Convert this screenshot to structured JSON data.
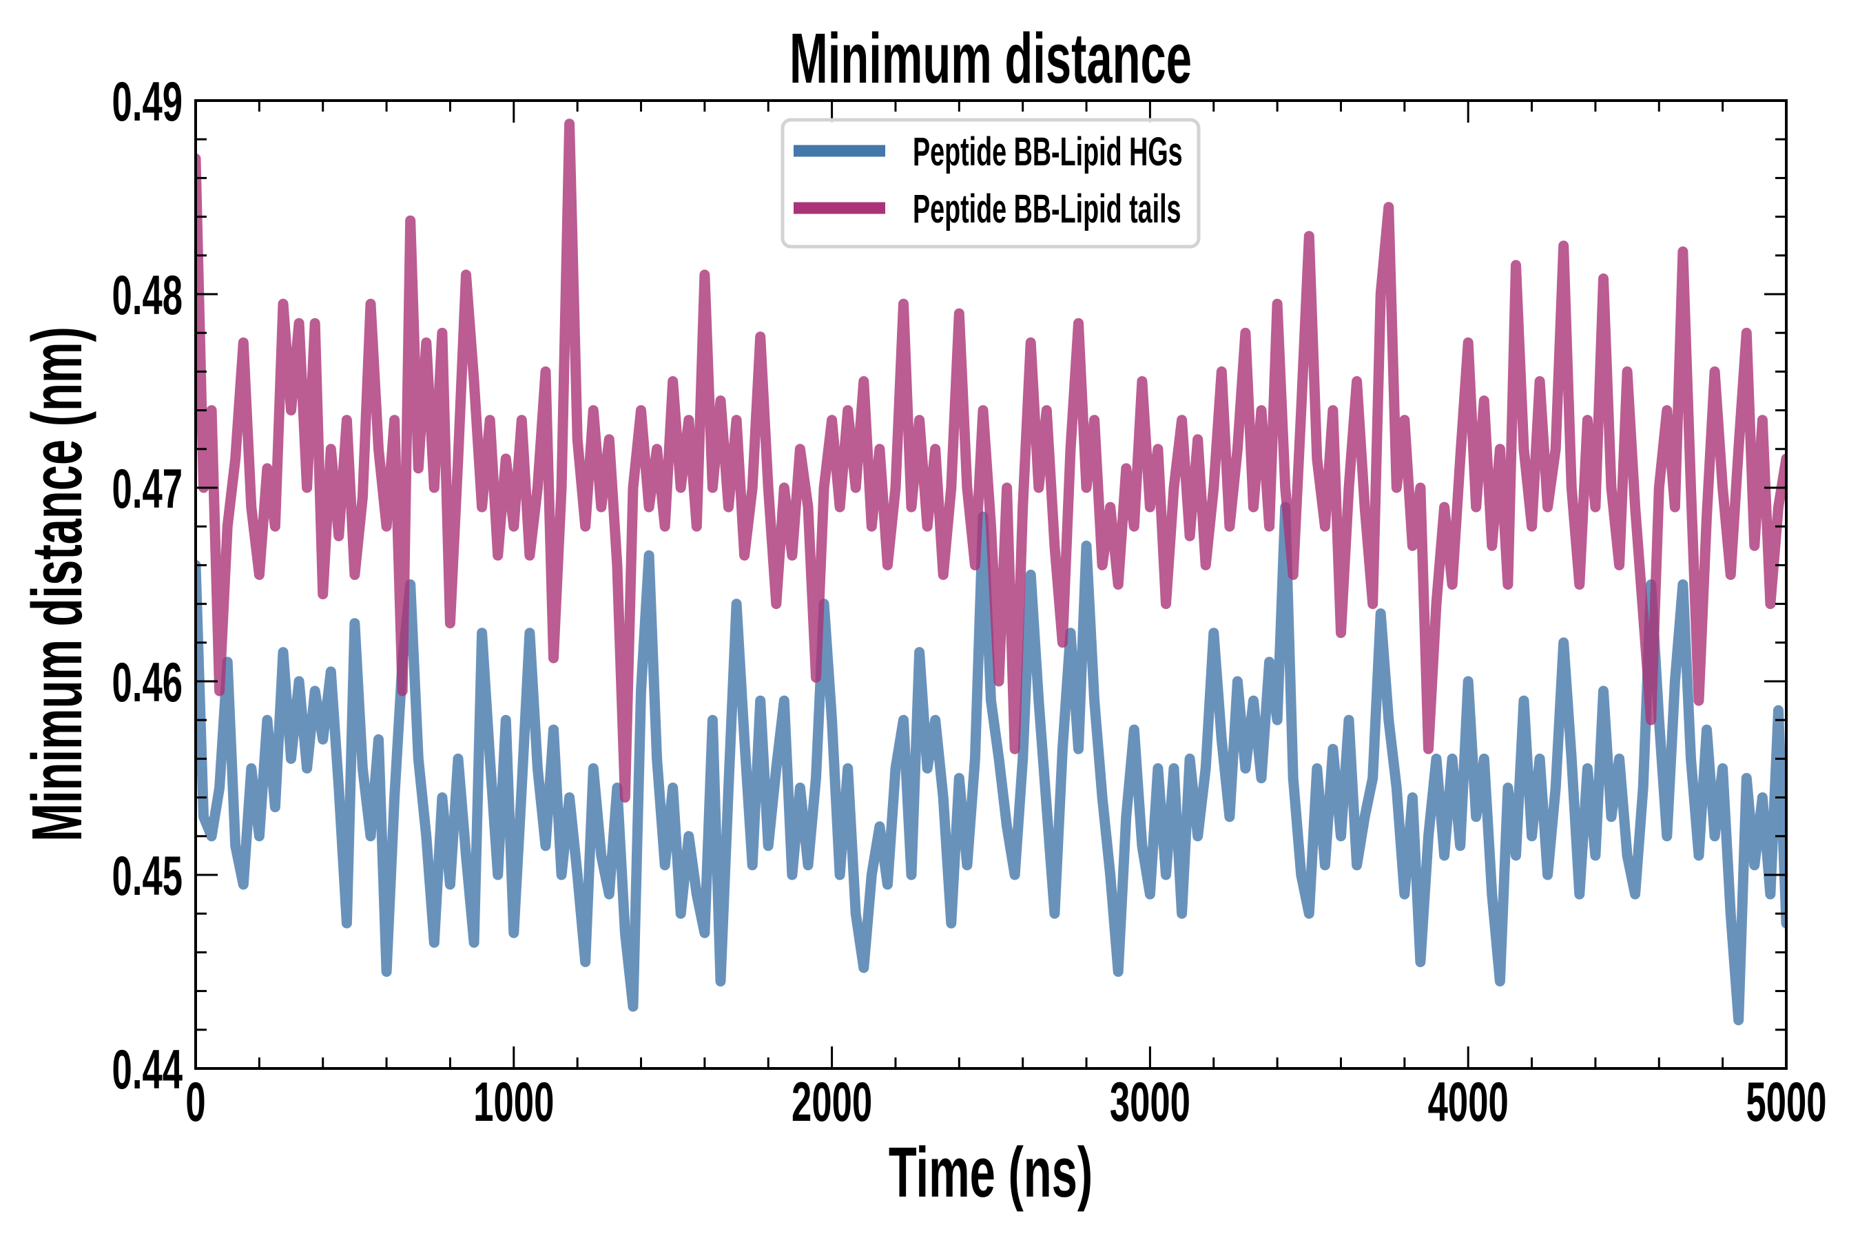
{
  "chart_data": {
    "type": "line",
    "title": "Minimum distance",
    "xlabel": "Time (ns)",
    "ylabel": "Minimum distance (nm)",
    "xlim": [
      0,
      5000
    ],
    "ylim": [
      0.44,
      0.49
    ],
    "xticks": [
      0,
      1000,
      2000,
      3000,
      4000,
      5000
    ],
    "xtick_labels": [
      "0",
      "1000",
      "2000",
      "3000",
      "4000",
      "5000"
    ],
    "yticks": [
      0.44,
      0.45,
      0.46,
      0.47,
      0.48,
      0.49
    ],
    "ytick_labels": [
      "0.44",
      "0.45",
      "0.46",
      "0.47",
      "0.48",
      "0.49"
    ],
    "x_minor_step": 200,
    "y_minor_step": 0.002,
    "grid": false,
    "legend_position": "top-center",
    "x": [
      0,
      25,
      50,
      75,
      100,
      125,
      150,
      175,
      200,
      225,
      250,
      275,
      300,
      325,
      350,
      375,
      400,
      425,
      450,
      475,
      500,
      525,
      550,
      575,
      600,
      625,
      650,
      675,
      700,
      725,
      750,
      775,
      800,
      825,
      850,
      875,
      900,
      925,
      950,
      975,
      1000,
      1025,
      1050,
      1075,
      1100,
      1125,
      1150,
      1175,
      1200,
      1225,
      1250,
      1275,
      1300,
      1325,
      1350,
      1375,
      1400,
      1425,
      1450,
      1475,
      1500,
      1525,
      1550,
      1575,
      1600,
      1625,
      1650,
      1675,
      1700,
      1725,
      1750,
      1775,
      1800,
      1825,
      1850,
      1875,
      1900,
      1925,
      1950,
      1975,
      2000,
      2025,
      2050,
      2075,
      2100,
      2125,
      2150,
      2175,
      2200,
      2225,
      2250,
      2275,
      2300,
      2325,
      2350,
      2375,
      2400,
      2425,
      2450,
      2475,
      2500,
      2525,
      2550,
      2575,
      2600,
      2625,
      2650,
      2675,
      2700,
      2725,
      2750,
      2775,
      2800,
      2825,
      2850,
      2875,
      2900,
      2925,
      2950,
      2975,
      3000,
      3025,
      3050,
      3075,
      3100,
      3125,
      3150,
      3175,
      3200,
      3225,
      3250,
      3275,
      3300,
      3325,
      3350,
      3375,
      3400,
      3425,
      3450,
      3475,
      3500,
      3525,
      3550,
      3575,
      3600,
      3625,
      3650,
      3675,
      3700,
      3725,
      3750,
      3775,
      3800,
      3825,
      3850,
      3875,
      3900,
      3925,
      3950,
      3975,
      4000,
      4025,
      4050,
      4075,
      4100,
      4125,
      4150,
      4175,
      4200,
      4225,
      4250,
      4275,
      4300,
      4325,
      4350,
      4375,
      4400,
      4425,
      4450,
      4475,
      4500,
      4525,
      4550,
      4575,
      4600,
      4625,
      4650,
      4675,
      4700,
      4725,
      4750,
      4775,
      4800,
      4825,
      4850,
      4875,
      4900,
      4925,
      4950,
      4975,
      5000
    ],
    "series": [
      {
        "name": "Peptide BB-Lipid HGs",
        "color": "#4477AA",
        "values": [
          0.466,
          0.453,
          0.452,
          0.4545,
          0.461,
          0.4515,
          0.4495,
          0.4555,
          0.452,
          0.458,
          0.4535,
          0.4615,
          0.456,
          0.46,
          0.4555,
          0.4595,
          0.457,
          0.4605,
          0.4545,
          0.4475,
          0.463,
          0.4555,
          0.452,
          0.457,
          0.445,
          0.454,
          0.461,
          0.465,
          0.456,
          0.452,
          0.4465,
          0.454,
          0.4495,
          0.456,
          0.451,
          0.4465,
          0.4625,
          0.456,
          0.45,
          0.458,
          0.447,
          0.4545,
          0.4625,
          0.4555,
          0.4515,
          0.4575,
          0.45,
          0.454,
          0.45,
          0.4455,
          0.4555,
          0.451,
          0.449,
          0.4545,
          0.447,
          0.4432,
          0.4595,
          0.4665,
          0.456,
          0.4505,
          0.4545,
          0.448,
          0.452,
          0.449,
          0.447,
          0.458,
          0.4445,
          0.4545,
          0.464,
          0.457,
          0.4505,
          0.459,
          0.4515,
          0.4555,
          0.459,
          0.45,
          0.4545,
          0.4505,
          0.455,
          0.464,
          0.458,
          0.45,
          0.4555,
          0.448,
          0.4452,
          0.45,
          0.4525,
          0.4495,
          0.4555,
          0.458,
          0.45,
          0.4615,
          0.4555,
          0.458,
          0.454,
          0.4475,
          0.455,
          0.4505,
          0.456,
          0.4685,
          0.459,
          0.456,
          0.4525,
          0.45,
          0.456,
          0.4655,
          0.459,
          0.4535,
          0.448,
          0.4565,
          0.4625,
          0.4565,
          0.467,
          0.459,
          0.454,
          0.45,
          0.445,
          0.453,
          0.4575,
          0.4515,
          0.449,
          0.4555,
          0.45,
          0.4555,
          0.448,
          0.456,
          0.452,
          0.4555,
          0.4625,
          0.457,
          0.453,
          0.46,
          0.4555,
          0.459,
          0.455,
          0.461,
          0.458,
          0.469,
          0.455,
          0.45,
          0.448,
          0.4555,
          0.4505,
          0.4565,
          0.452,
          0.458,
          0.4505,
          0.453,
          0.455,
          0.4635,
          0.458,
          0.4545,
          0.449,
          0.454,
          0.4455,
          0.452,
          0.456,
          0.451,
          0.456,
          0.4515,
          0.46,
          0.453,
          0.456,
          0.449,
          0.4445,
          0.4545,
          0.451,
          0.459,
          0.452,
          0.456,
          0.45,
          0.4545,
          0.462,
          0.456,
          0.449,
          0.4555,
          0.451,
          0.4595,
          0.453,
          0.456,
          0.451,
          0.449,
          0.4545,
          0.465,
          0.458,
          0.452,
          0.46,
          0.465,
          0.456,
          0.451,
          0.4575,
          0.452,
          0.4555,
          0.448,
          0.4425,
          0.455,
          0.4505,
          0.454,
          0.449,
          0.4585,
          0.4475
        ]
      },
      {
        "name": "Peptide BB-Lipid tails",
        "color": "#AA3377",
        "values": [
          0.487,
          0.47,
          0.474,
          0.4595,
          0.468,
          0.4715,
          0.4775,
          0.469,
          0.4655,
          0.471,
          0.468,
          0.4795,
          0.474,
          0.4785,
          0.47,
          0.4785,
          0.4645,
          0.472,
          0.4675,
          0.4735,
          0.4655,
          0.4695,
          0.4795,
          0.472,
          0.468,
          0.4735,
          0.4595,
          0.4838,
          0.471,
          0.4775,
          0.47,
          0.478,
          0.463,
          0.4715,
          0.481,
          0.4755,
          0.469,
          0.4735,
          0.4665,
          0.4715,
          0.468,
          0.4735,
          0.4665,
          0.47,
          0.476,
          0.4612,
          0.47,
          0.4888,
          0.4725,
          0.468,
          0.474,
          0.469,
          0.4725,
          0.466,
          0.454,
          0.47,
          0.474,
          0.469,
          0.472,
          0.468,
          0.4755,
          0.47,
          0.4735,
          0.468,
          0.481,
          0.47,
          0.4745,
          0.469,
          0.4735,
          0.4665,
          0.47,
          0.4778,
          0.47,
          0.464,
          0.47,
          0.4665,
          0.472,
          0.469,
          0.4602,
          0.47,
          0.4735,
          0.469,
          0.474,
          0.47,
          0.4755,
          0.468,
          0.472,
          0.466,
          0.47,
          0.4795,
          0.469,
          0.4735,
          0.468,
          0.472,
          0.4655,
          0.47,
          0.479,
          0.47,
          0.466,
          0.474,
          0.468,
          0.46,
          0.47,
          0.4565,
          0.469,
          0.4775,
          0.47,
          0.474,
          0.467,
          0.462,
          0.472,
          0.4785,
          0.47,
          0.4735,
          0.466,
          0.469,
          0.465,
          0.471,
          0.468,
          0.4755,
          0.469,
          0.472,
          0.464,
          0.47,
          0.4735,
          0.4675,
          0.4725,
          0.466,
          0.47,
          0.476,
          0.468,
          0.472,
          0.478,
          0.469,
          0.474,
          0.468,
          0.4795,
          0.47,
          0.4655,
          0.474,
          0.483,
          0.4715,
          0.468,
          0.474,
          0.4625,
          0.47,
          0.4755,
          0.469,
          0.464,
          0.48,
          0.4845,
          0.47,
          0.4735,
          0.467,
          0.47,
          0.4565,
          0.464,
          0.469,
          0.465,
          0.4715,
          0.4775,
          0.469,
          0.4745,
          0.467,
          0.472,
          0.465,
          0.4815,
          0.472,
          0.468,
          0.4755,
          0.469,
          0.472,
          0.4825,
          0.47,
          0.465,
          0.4735,
          0.469,
          0.4808,
          0.47,
          0.466,
          0.476,
          0.469,
          0.4635,
          0.458,
          0.47,
          0.474,
          0.469,
          0.4822,
          0.47,
          0.459,
          0.4685,
          0.476,
          0.47,
          0.4655,
          0.472,
          0.478,
          0.467,
          0.4735,
          0.464,
          0.469,
          0.4715
        ]
      }
    ]
  }
}
